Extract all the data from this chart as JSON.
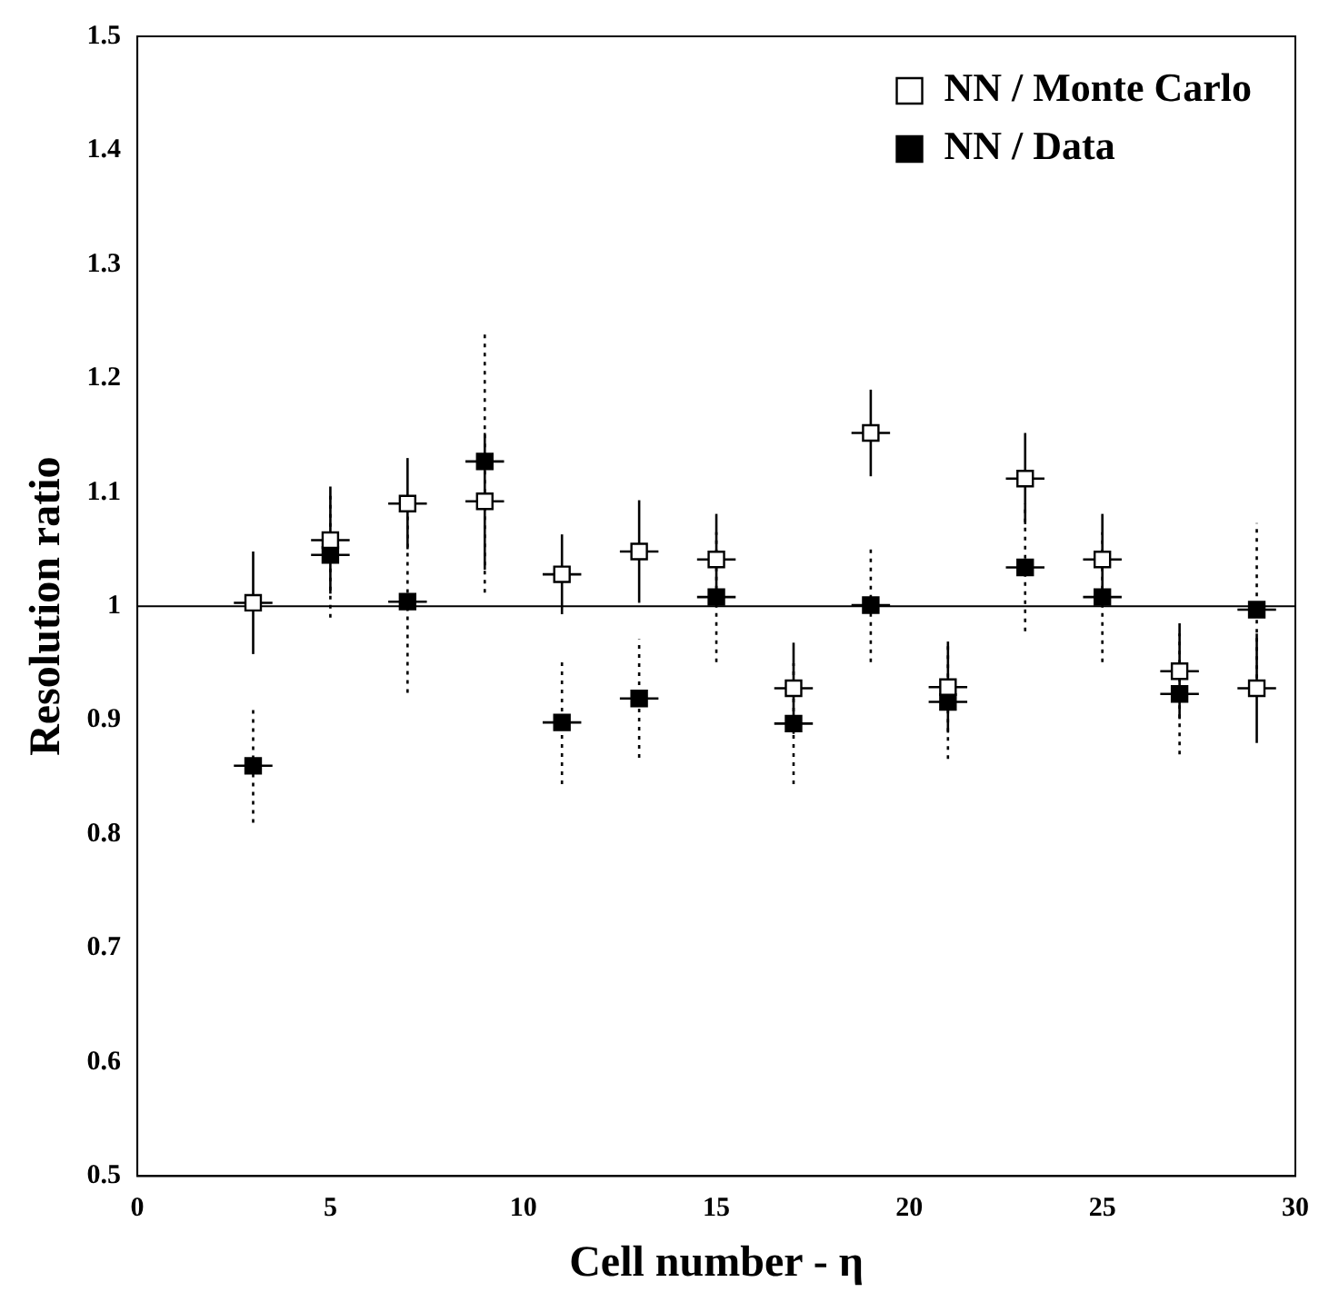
{
  "chart_data": {
    "type": "scatter",
    "xlabel": "Cell number - η",
    "ylabel": "Resolution ratio",
    "xlim": [
      0,
      30
    ],
    "xticks": [
      0,
      5,
      10,
      15,
      20,
      25,
      30
    ],
    "ylim": [
      0.5,
      1.5
    ],
    "yticks": [
      0.5,
      0.6,
      0.7,
      0.8,
      0.9,
      1,
      1.1,
      1.2,
      1.3,
      1.4,
      1.5
    ],
    "grid": false,
    "legend": "top right",
    "marker": "square",
    "ref_lines": [
      {
        "axis": "y",
        "value": 1,
        "color": "#000000"
      }
    ],
    "series": [
      {
        "name": "NN / Monte Carlo",
        "color": "#ffffff",
        "line_style": "solid",
        "x": [
          3,
          5,
          7,
          9,
          11,
          13,
          15,
          17,
          19,
          21,
          23,
          25,
          27,
          29
        ],
        "values": [
          1.003,
          1.058,
          1.09,
          1.092,
          1.028,
          1.048,
          1.041,
          0.928,
          1.152,
          0.929,
          1.112,
          1.041,
          0.943,
          0.928
        ],
        "errors": [
          0.045,
          0.047,
          0.04,
          0.06,
          0.035,
          0.045,
          0.04,
          0.04,
          0.038,
          0.04,
          0.04,
          0.04,
          0.042,
          0.048
        ],
        "xerrors": [
          0.5,
          0.5,
          0.5,
          0.5,
          0.5,
          0.5,
          0.5,
          0.5,
          0.5,
          0.5,
          0.5,
          0.5,
          0.5,
          0.5
        ]
      },
      {
        "name": "NN / Data",
        "color": "#000000",
        "line_style": "dotted",
        "x": [
          3,
          5,
          7,
          9,
          11,
          13,
          15,
          17,
          19,
          21,
          23,
          25,
          27,
          29
        ],
        "values": [
          0.86,
          1.045,
          1.004,
          1.127,
          0.898,
          0.919,
          1.008,
          0.897,
          1.001,
          0.916,
          1.034,
          1.008,
          0.923,
          0.997
        ],
        "errors": [
          0.05,
          0.055,
          0.08,
          0.115,
          0.054,
          0.052,
          0.057,
          0.053,
          0.05,
          0.05,
          0.056,
          0.057,
          0.053,
          0.076
        ],
        "xerrors": [
          0.5,
          0.5,
          0.5,
          0.5,
          0.5,
          0.5,
          0.5,
          0.5,
          0.5,
          0.5,
          0.5,
          0.5,
          0.5,
          0.5
        ]
      }
    ]
  }
}
